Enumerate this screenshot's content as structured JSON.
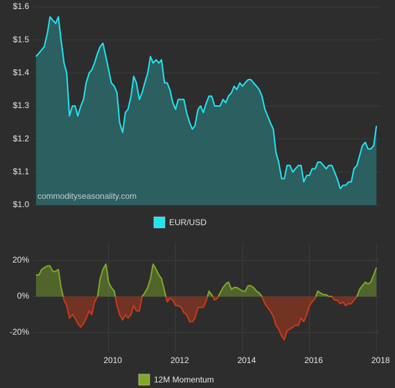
{
  "chart_data": [
    {
      "type": "area",
      "annotation": "commodityseasonality.com",
      "xlim": [
        2007.75,
        2018.1
      ],
      "ylim": [
        1.0,
        1.6
      ],
      "yticks": [
        {
          "value": 1.0,
          "label": "$1.0"
        },
        {
          "value": 1.1,
          "label": "$1.1"
        },
        {
          "value": 1.2,
          "label": "$1.2"
        },
        {
          "value": 1.3,
          "label": "$1.3"
        },
        {
          "value": 1.4,
          "label": "$1.4"
        },
        {
          "value": 1.5,
          "label": "$1.5"
        },
        {
          "value": 1.6,
          "label": "$1.6"
        }
      ],
      "grid": true,
      "x": [
        2007.83,
        2007.92,
        2008.0,
        2008.08,
        2008.17,
        2008.25,
        2008.33,
        2008.42,
        2008.5,
        2008.58,
        2008.67,
        2008.75,
        2008.83,
        2008.92,
        2009.0,
        2009.08,
        2009.17,
        2009.25,
        2009.33,
        2009.42,
        2009.5,
        2009.58,
        2009.67,
        2009.75,
        2009.83,
        2009.92,
        2010.0,
        2010.08,
        2010.17,
        2010.25,
        2010.33,
        2010.42,
        2010.5,
        2010.58,
        2010.67,
        2010.75,
        2010.83,
        2010.92,
        2011.0,
        2011.08,
        2011.17,
        2011.25,
        2011.33,
        2011.42,
        2011.5,
        2011.58,
        2011.67,
        2011.75,
        2011.83,
        2011.92,
        2012.0,
        2012.08,
        2012.17,
        2012.25,
        2012.33,
        2012.42,
        2012.5,
        2012.58,
        2012.67,
        2012.75,
        2012.83,
        2012.92,
        2013.0,
        2013.08,
        2013.17,
        2013.25,
        2013.33,
        2013.42,
        2013.5,
        2013.58,
        2013.67,
        2013.75,
        2013.83,
        2013.92,
        2014.0,
        2014.08,
        2014.17,
        2014.25,
        2014.33,
        2014.42,
        2014.5,
        2014.58,
        2014.67,
        2014.75,
        2014.83,
        2014.92,
        2015.0,
        2015.08,
        2015.17,
        2015.25,
        2015.33,
        2015.42,
        2015.5,
        2015.58,
        2015.67,
        2015.75,
        2015.83,
        2015.92,
        2016.0,
        2016.08,
        2016.17,
        2016.25,
        2016.33,
        2016.42,
        2016.5,
        2016.58,
        2016.67,
        2016.75,
        2016.83,
        2016.92,
        2017.0,
        2017.08,
        2017.17,
        2017.25,
        2017.33,
        2017.42,
        2017.5,
        2017.58,
        2017.67,
        2017.75,
        2017.83,
        2017.92,
        2018.0
      ],
      "series": [
        {
          "name": "EUR/USD",
          "color": "#22e3ef",
          "fill": "#2b5f60",
          "values": [
            1.45,
            1.46,
            1.47,
            1.48,
            1.52,
            1.57,
            1.56,
            1.55,
            1.57,
            1.5,
            1.43,
            1.4,
            1.27,
            1.3,
            1.3,
            1.27,
            1.3,
            1.32,
            1.37,
            1.4,
            1.41,
            1.43,
            1.46,
            1.48,
            1.49,
            1.45,
            1.41,
            1.37,
            1.36,
            1.34,
            1.25,
            1.22,
            1.28,
            1.29,
            1.33,
            1.39,
            1.37,
            1.32,
            1.34,
            1.37,
            1.4,
            1.45,
            1.43,
            1.44,
            1.43,
            1.44,
            1.37,
            1.37,
            1.35,
            1.31,
            1.29,
            1.32,
            1.32,
            1.32,
            1.28,
            1.25,
            1.23,
            1.24,
            1.29,
            1.3,
            1.28,
            1.31,
            1.33,
            1.33,
            1.3,
            1.3,
            1.3,
            1.32,
            1.31,
            1.33,
            1.34,
            1.36,
            1.35,
            1.37,
            1.36,
            1.37,
            1.38,
            1.38,
            1.37,
            1.36,
            1.35,
            1.33,
            1.29,
            1.27,
            1.25,
            1.23,
            1.16,
            1.13,
            1.08,
            1.08,
            1.12,
            1.12,
            1.1,
            1.11,
            1.12,
            1.12,
            1.07,
            1.09,
            1.09,
            1.11,
            1.11,
            1.13,
            1.13,
            1.12,
            1.11,
            1.12,
            1.12,
            1.1,
            1.08,
            1.05,
            1.06,
            1.06,
            1.07,
            1.07,
            1.11,
            1.12,
            1.15,
            1.18,
            1.19,
            1.17,
            1.17,
            1.18,
            1.24
          ]
        }
      ]
    },
    {
      "type": "area",
      "xlim": [
        2007.75,
        2018.1
      ],
      "ylim": [
        -31,
        30
      ],
      "yticks": [
        {
          "value": -20,
          "label": "-20%"
        },
        {
          "value": 0,
          "label": "0%"
        },
        {
          "value": 20,
          "label": "20%"
        }
      ],
      "xticks": [
        2010,
        2012,
        2014,
        2016,
        2018
      ],
      "grid": true,
      "x": [
        2007.83,
        2007.92,
        2008.0,
        2008.08,
        2008.17,
        2008.25,
        2008.33,
        2008.42,
        2008.5,
        2008.58,
        2008.67,
        2008.75,
        2008.83,
        2008.92,
        2009.0,
        2009.08,
        2009.17,
        2009.25,
        2009.33,
        2009.42,
        2009.5,
        2009.58,
        2009.67,
        2009.75,
        2009.83,
        2009.92,
        2010.0,
        2010.08,
        2010.17,
        2010.25,
        2010.33,
        2010.42,
        2010.5,
        2010.58,
        2010.67,
        2010.75,
        2010.83,
        2010.92,
        2011.0,
        2011.08,
        2011.17,
        2011.25,
        2011.33,
        2011.42,
        2011.5,
        2011.58,
        2011.67,
        2011.75,
        2011.83,
        2011.92,
        2012.0,
        2012.08,
        2012.17,
        2012.25,
        2012.33,
        2012.42,
        2012.5,
        2012.58,
        2012.67,
        2012.75,
        2012.83,
        2012.92,
        2013.0,
        2013.08,
        2013.17,
        2013.25,
        2013.33,
        2013.42,
        2013.5,
        2013.58,
        2013.67,
        2013.75,
        2013.83,
        2013.92,
        2014.0,
        2014.08,
        2014.17,
        2014.25,
        2014.33,
        2014.42,
        2014.5,
        2014.58,
        2014.67,
        2014.75,
        2014.83,
        2014.92,
        2015.0,
        2015.08,
        2015.17,
        2015.25,
        2015.33,
        2015.42,
        2015.5,
        2015.58,
        2015.67,
        2015.75,
        2015.83,
        2015.92,
        2016.0,
        2016.08,
        2016.17,
        2016.25,
        2016.33,
        2016.42,
        2016.5,
        2016.58,
        2016.67,
        2016.75,
        2016.83,
        2016.92,
        2017.0,
        2017.08,
        2017.17,
        2017.25,
        2017.33,
        2017.42,
        2017.5,
        2017.58,
        2017.67,
        2017.75,
        2017.83,
        2017.92,
        2018.0
      ],
      "series": [
        {
          "name": "12M Momentum",
          "color": "#7fa82a",
          "negative_color": "#c83a1a",
          "values": [
            12,
            12,
            15,
            16,
            17,
            17,
            14,
            14,
            15,
            5,
            -2,
            -5,
            -12,
            -10,
            -12,
            -15,
            -17,
            -15,
            -12,
            -8,
            -10,
            -3,
            0,
            10,
            15,
            18,
            8,
            5,
            3,
            -5,
            -10,
            -13,
            -10,
            -12,
            -10,
            -5,
            -8,
            -8,
            0,
            2,
            5,
            10,
            18,
            15,
            12,
            10,
            3,
            -3,
            -1,
            -2,
            -5,
            -5,
            -6,
            -9,
            -10,
            -14,
            -14,
            -12,
            -6,
            -6,
            -6,
            -2,
            3,
            1,
            -2,
            -1,
            2,
            5,
            7,
            8,
            4,
            5,
            5,
            4,
            3,
            3,
            6,
            6,
            5,
            3,
            2,
            0,
            -4,
            -6,
            -8,
            -11,
            -16,
            -18,
            -22,
            -24,
            -19,
            -18,
            -17,
            -16,
            -16,
            -12,
            -14,
            -10,
            -5,
            -3,
            -1,
            3,
            2,
            1,
            1,
            0,
            0,
            -2,
            -2,
            -4,
            -3,
            -5,
            -4,
            -4,
            -2,
            0,
            4,
            6,
            8,
            7,
            8,
            12,
            16
          ]
        }
      ]
    }
  ]
}
